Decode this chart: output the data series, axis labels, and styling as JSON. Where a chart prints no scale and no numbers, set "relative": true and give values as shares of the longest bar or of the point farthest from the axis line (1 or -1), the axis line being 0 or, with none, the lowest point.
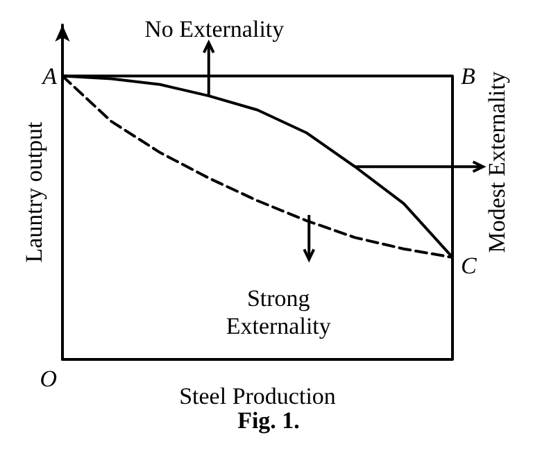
{
  "chart_data": {
    "type": "line",
    "relative": true,
    "xlabel": "Steel Production",
    "ylabel": "Launtry output",
    "categories": [
      null,
      null,
      null,
      null,
      null,
      null,
      null,
      null,
      null
    ],
    "grid": false,
    "marker": "none",
    "series": [
      {
        "color": "#000000",
        "line_style": "solid",
        "values": [
          1,
          1,
          1,
          1,
          1,
          1,
          1,
          1,
          1
        ]
      },
      {
        "color": "#000000",
        "line_style": "solid",
        "values": [
          1.0,
          0.99,
          0.97,
          0.93,
          0.88,
          0.8,
          0.68,
          0.55,
          0.36
        ]
      },
      {
        "color": "#000000",
        "line_style": "dashed",
        "values": [
          1.0,
          0.84,
          0.73,
          0.64,
          0.56,
          0.49,
          0.43,
          0.39,
          0.36
        ]
      }
    ],
    "annotations": [
      "A",
      "B",
      "C",
      "O",
      "No Externality",
      "Modest Externality",
      "Strong\nExternality",
      "Fig. 1."
    ]
  }
}
